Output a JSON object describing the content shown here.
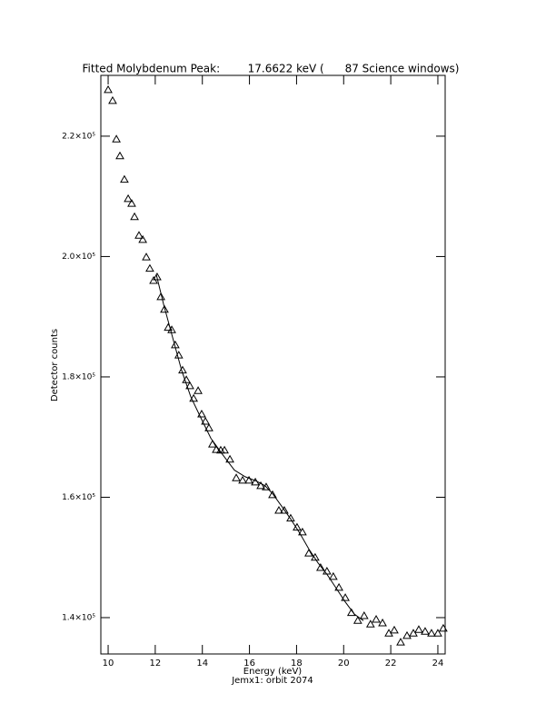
{
  "chart_data": {
    "type": "scatter",
    "title": "Fitted Molybdenum Peak:        17.6622 keV (      87 Science windows)",
    "x_label": "Energy (keV)",
    "subtitle": "Jemx1: orbit 2074",
    "y_label": "Detector counts",
    "xlim": [
      9.69,
      24.31
    ],
    "ylim": [
      133960,
      230100
    ],
    "xticks": [
      10,
      12,
      14,
      16,
      18,
      20,
      22,
      24
    ],
    "yticks": [
      {
        "value": 140000,
        "label": "1.4×10⁵"
      },
      {
        "value": 160000,
        "label": "1.6×10⁵"
      },
      {
        "value": 180000,
        "label": "1.8×10⁵"
      },
      {
        "value": 200000,
        "label": "2.0×10⁵"
      },
      {
        "value": 220000,
        "label": "2.2×10⁵"
      }
    ],
    "series": [
      {
        "style": "triangle",
        "color": "#000000",
        "x": [
          10.0,
          10.19,
          10.35,
          10.5,
          10.69,
          10.85,
          11.0,
          11.12,
          11.31,
          11.47,
          11.62,
          11.77,
          11.93,
          12.08,
          12.24,
          12.39,
          12.55,
          12.7,
          12.85,
          13.0,
          13.16,
          13.32,
          13.47,
          13.63,
          13.82,
          13.97,
          14.13,
          14.28,
          14.43,
          14.59,
          14.78,
          14.94,
          15.17,
          15.44,
          15.71,
          15.98,
          16.25,
          16.48,
          16.71,
          16.98,
          17.25,
          17.48,
          17.75,
          18.02,
          18.25,
          18.52,
          18.79,
          19.02,
          19.29,
          19.56,
          19.8,
          20.07,
          20.33,
          20.6,
          20.87,
          21.14,
          21.38,
          21.65,
          21.92,
          22.15,
          22.42,
          22.69,
          22.96,
          23.19,
          23.46,
          23.73,
          24.0,
          24.23
        ],
        "values": [
          227700,
          225900,
          219500,
          216700,
          212800,
          209600,
          208800,
          206600,
          203500,
          202800,
          199900,
          198000,
          196000,
          196600,
          193300,
          191200,
          188200,
          187800,
          185300,
          183600,
          181100,
          179500,
          178500,
          176400,
          177700,
          173800,
          172600,
          171500,
          168800,
          167900,
          167800,
          167800,
          166300,
          163200,
          162800,
          162800,
          162500,
          161900,
          161700,
          160400,
          157800,
          157800,
          156500,
          155000,
          154200,
          150700,
          150000,
          148300,
          147700,
          146800,
          145000,
          143300,
          140800,
          139500,
          140300,
          138900,
          139700,
          139100,
          137400,
          137900,
          135900,
          137000,
          137400,
          138000,
          137700,
          137400,
          137400,
          138200
        ]
      },
      {
        "style": "line",
        "color": "#000000",
        "x": [
          12.04,
          12.35,
          12.74,
          13.12,
          13.51,
          13.9,
          14.36,
          14.86,
          15.36,
          15.82,
          16.29,
          16.67,
          16.98,
          17.37,
          17.75,
          18.14,
          18.52,
          18.91,
          19.29,
          19.68,
          20.07,
          20.45,
          20.84
        ],
        "values": [
          197100,
          192100,
          186500,
          181100,
          176700,
          173500,
          169800,
          167100,
          164500,
          163400,
          162700,
          161900,
          160600,
          158500,
          156400,
          154000,
          151400,
          149100,
          147200,
          144900,
          142600,
          140600,
          139500
        ]
      }
    ]
  }
}
